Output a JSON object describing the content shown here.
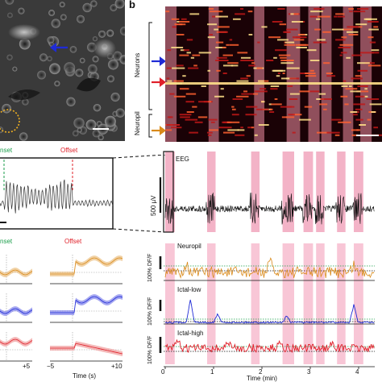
{
  "panel_b_letter": "b",
  "raster": {
    "neurons_label": "Neurons",
    "neuropil_label": "Neuropil",
    "arrow_colors": {
      "blue": "#1f2bd6",
      "red": "#e0202a",
      "orange": "#d98a1a"
    }
  },
  "zoom_trace": {
    "onset_label": "nset",
    "offset_label": "Offset",
    "onset_color": "#1b9e4b",
    "offset_color": "#e0202a"
  },
  "eeg": {
    "label": "EEG",
    "scale_label": "500 µV"
  },
  "dff": {
    "neuropil_label": "Neuropil",
    "ictal_low_label": "Ictal-low",
    "ictal_high_label": "Ictal-high",
    "ylabel": "100% DF/F",
    "colors": {
      "neuropil": "#d98a1a",
      "ictal_low": "#1f2bd6",
      "ictal_high": "#e0202a"
    }
  },
  "time_axis": {
    "ticks": [
      "0",
      "1",
      "2",
      "3",
      "4"
    ],
    "label": "Time (min)"
  },
  "avg_panels": {
    "onset_label": "nset",
    "offset_label": "Offset",
    "xticks_left": [
      "+5"
    ],
    "xticks_right": [
      "−5",
      "+10"
    ],
    "time_label": "Time (s)",
    "colors": {
      "orange": "#e8b46a",
      "blue": "#6a6ee8",
      "red": "#ec8a8a"
    }
  }
}
